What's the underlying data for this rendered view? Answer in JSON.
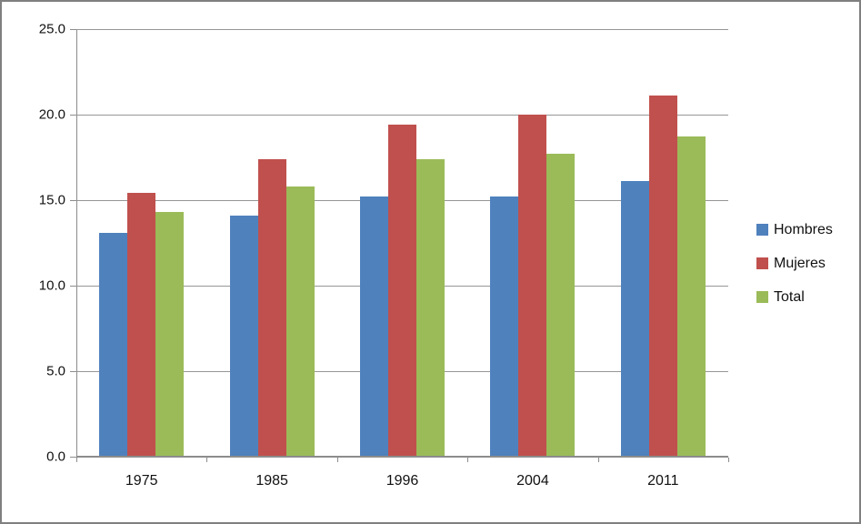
{
  "chart_data": {
    "type": "bar",
    "title": "",
    "categories": [
      "1975",
      "1985",
      "1996",
      "2004",
      "2011"
    ],
    "series": [
      {
        "name": "Hombres",
        "color": "#4F81BD",
        "values": [
          13.1,
          14.1,
          15.2,
          15.2,
          16.1
        ]
      },
      {
        "name": "Mujeres",
        "color": "#C0504D",
        "values": [
          15.4,
          17.4,
          19.4,
          20.0,
          21.1
        ]
      },
      {
        "name": "Total",
        "color": "#9BBB59",
        "values": [
          14.3,
          15.8,
          17.4,
          17.7,
          18.7
        ]
      }
    ],
    "xlabel": "",
    "ylabel": "",
    "ylim": [
      0,
      25
    ],
    "ytick_step": 5,
    "yticks": [
      "25.0",
      "20.0",
      "15.0",
      "10.0",
      "5.0",
      "0.0"
    ],
    "grid": true,
    "legend_position": "right"
  },
  "colors": {
    "gridline": "#969696",
    "axis": "#8c8c8c",
    "frame_border": "#7f7f7f",
    "text": "#111111",
    "background": "#ffffff"
  }
}
